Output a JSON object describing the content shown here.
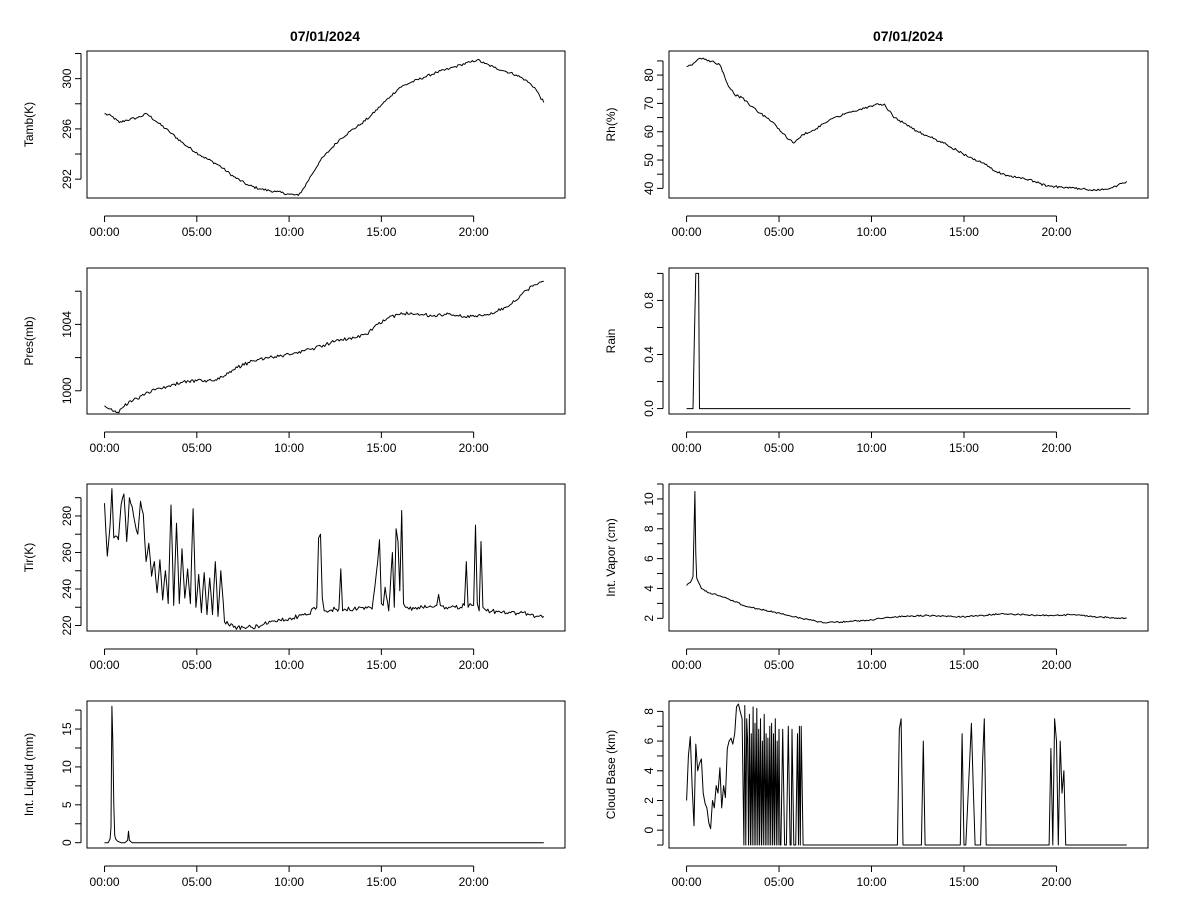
{
  "figure": {
    "titles": [
      "07/01/2024",
      "07/01/2024"
    ]
  },
  "chart_data": [
    {
      "type": "line",
      "panel": "left-row-1",
      "ylabel": "Tamb(K)",
      "x_ticks": [
        "00:00",
        "05:00",
        "10:00",
        "15:00",
        "20:00"
      ],
      "y_ticks": [
        "292",
        "296",
        "300"
      ],
      "ylim": [
        290.5,
        302.2
      ],
      "xlim": [
        -0.95,
        24.95
      ],
      "noise": 0.1,
      "x": [
        0,
        0.4,
        0.8,
        1.2,
        1.8,
        2.3,
        2.8,
        3.5,
        4.3,
        5.2,
        6.2,
        7.0,
        7.8,
        8.5,
        9.3,
        10.0,
        10.5,
        10.8,
        11.2,
        11.7,
        12.2,
        12.7,
        13.3,
        13.9,
        14.4,
        15.0,
        15.5,
        16.0,
        16.6,
        17.3,
        18.0,
        18.7,
        19.3,
        19.8,
        20.2,
        20.6,
        21.1,
        21.7,
        22.3,
        22.8,
        23.3,
        23.8
      ],
      "y": [
        297.2,
        297.0,
        296.5,
        296.7,
        296.9,
        297.2,
        296.6,
        295.8,
        294.8,
        293.9,
        293.1,
        292.2,
        291.5,
        291.2,
        291.0,
        290.8,
        290.7,
        291.3,
        292.3,
        293.5,
        294.3,
        295.1,
        295.8,
        296.4,
        297.0,
        297.9,
        298.6,
        299.3,
        299.7,
        300.1,
        300.5,
        300.8,
        301.1,
        301.3,
        301.5,
        301.2,
        300.9,
        300.6,
        300.3,
        299.9,
        299.3,
        298.1
      ]
    },
    {
      "type": "line",
      "panel": "right-row-1",
      "ylabel": "Rh(%)",
      "x_ticks": [
        "00:00",
        "05:00",
        "10:00",
        "15:00",
        "20:00"
      ],
      "y_ticks": [
        "40",
        "50",
        "60",
        "70",
        "80"
      ],
      "ylim": [
        36.6,
        88.5
      ],
      "xlim": [
        -0.95,
        24.95
      ],
      "noise": 0.4,
      "x": [
        0,
        0.3,
        0.6,
        0.9,
        1.2,
        1.5,
        1.8,
        2.2,
        2.6,
        3.0,
        3.5,
        4.0,
        4.5,
        5.0,
        5.4,
        5.8,
        6.3,
        7.0,
        7.8,
        8.6,
        9.4,
        10.2,
        10.7,
        11.2,
        11.8,
        12.5,
        13.2,
        13.9,
        14.6,
        15.3,
        16.0,
        16.7,
        17.4,
        18.1,
        18.8,
        19.5,
        20.2,
        21.0,
        21.8,
        22.4,
        22.9,
        23.3,
        23.8
      ],
      "y": [
        83,
        83.5,
        85.5,
        86,
        85.2,
        84.5,
        83.6,
        77,
        73,
        72,
        69,
        66.5,
        64,
        61,
        58,
        56,
        59,
        61,
        64.5,
        66.5,
        68,
        69.5,
        69.8,
        65,
        63,
        60,
        58,
        56,
        53.5,
        51,
        49,
        46,
        44.5,
        43.5,
        42.5,
        40.8,
        40.5,
        40,
        39.5,
        39.5,
        40,
        41,
        42.5
      ]
    },
    {
      "type": "line",
      "panel": "left-row-2",
      "ylabel": "Pres(mb)",
      "x_ticks": [
        "00:00",
        "05:00",
        "10:00",
        "15:00",
        "20:00"
      ],
      "y_ticks": [
        "1000",
        "1004"
      ],
      "ylim": [
        998.6,
        1007.4
      ],
      "xlim": [
        -0.95,
        24.95
      ],
      "noise": 0.1,
      "x": [
        0,
        0.3,
        0.7,
        1.0,
        1.4,
        1.8,
        2.2,
        2.8,
        3.5,
        4.2,
        5.0,
        5.8,
        6.5,
        7.2,
        8.0,
        8.8,
        9.6,
        10.4,
        11.2,
        12.0,
        12.8,
        13.6,
        14.2,
        14.8,
        15.4,
        16.0,
        16.6,
        17.2,
        17.8,
        18.5,
        19.2,
        19.9,
        20.6,
        21.3,
        22.0,
        22.6,
        23.2,
        23.8
      ],
      "y": [
        999.1,
        998.9,
        998.7,
        999.0,
        999.4,
        999.5,
        999.8,
        1000.1,
        1000.3,
        1000.5,
        1000.6,
        1000.6,
        1000.9,
        1001.4,
        1001.8,
        1002.0,
        1002.1,
        1002.3,
        1002.5,
        1002.8,
        1003.1,
        1003.2,
        1003.4,
        1004.0,
        1004.4,
        1004.6,
        1004.7,
        1004.6,
        1004.5,
        1004.6,
        1004.5,
        1004.5,
        1004.6,
        1004.8,
        1005.2,
        1005.8,
        1006.3,
        1006.6
      ]
    },
    {
      "type": "line",
      "panel": "right-row-2",
      "ylabel": "Rain",
      "x_ticks": [
        "00:00",
        "05:00",
        "10:00",
        "15:00",
        "20:00"
      ],
      "y_ticks": [
        "0.0",
        "0.4",
        "0.8"
      ],
      "ylim": [
        -0.04,
        1.04
      ],
      "xlim": [
        -0.95,
        24.95
      ],
      "noise": 0,
      "x": [
        0,
        0.2,
        0.35,
        0.42,
        0.5,
        0.6,
        0.65,
        0.7,
        1.0,
        24
      ],
      "y": [
        0,
        0,
        0,
        0.5,
        1,
        1,
        1,
        0,
        0,
        0
      ]
    },
    {
      "type": "line",
      "panel": "left-row-3",
      "ylabel": "Tir(K)",
      "x_ticks": [
        "00:00",
        "05:00",
        "10:00",
        "15:00",
        "20:00"
      ],
      "y_ticks": [
        "220",
        "240",
        "260",
        "280"
      ],
      "ylim": [
        217,
        297.5
      ],
      "xlim": [
        -0.95,
        24.95
      ],
      "noise": 1.2,
      "x": [
        0,
        0.15,
        0.3,
        0.4,
        0.5,
        0.6,
        0.75,
        0.9,
        1.05,
        1.2,
        1.35,
        1.5,
        1.65,
        1.8,
        1.95,
        2.1,
        2.25,
        2.4,
        2.55,
        2.7,
        2.85,
        3.0,
        3.15,
        3.3,
        3.45,
        3.6,
        3.75,
        3.9,
        4.05,
        4.2,
        4.35,
        4.5,
        4.65,
        4.8,
        4.95,
        5.1,
        5.25,
        5.4,
        5.55,
        5.7,
        5.85,
        6.0,
        6.15,
        6.3,
        6.5,
        7.0,
        7.5,
        8.0,
        8.5,
        9.0,
        9.5,
        10.0,
        10.5,
        11.0,
        11.5,
        11.6,
        11.7,
        11.8,
        11.9,
        12.0,
        12.5,
        12.7,
        12.8,
        12.9,
        13.0,
        13.5,
        14.0,
        14.5,
        14.8,
        14.9,
        15.0,
        15.1,
        15.2,
        15.4,
        15.6,
        15.7,
        15.8,
        15.9,
        16.0,
        16.1,
        16.2,
        16.3,
        16.4,
        16.5,
        17.0,
        17.5,
        18.0,
        18.1,
        18.2,
        18.5,
        19.0,
        19.5,
        19.6,
        19.7,
        19.8,
        19.9,
        20.0,
        20.1,
        20.2,
        20.3,
        20.4,
        20.5,
        20.6,
        20.7,
        21.0,
        21.5,
        22.0,
        22.5,
        23.0,
        23.5,
        23.8
      ],
      "y": [
        287,
        258,
        275,
        295,
        268,
        269,
        267,
        286,
        292,
        266,
        290,
        285,
        276,
        270,
        288,
        281,
        255,
        265,
        247,
        255,
        238,
        256,
        234,
        250,
        232,
        286,
        231,
        276,
        232,
        262,
        235,
        251,
        232,
        284,
        230,
        248,
        227,
        249,
        226,
        246,
        226,
        255,
        225,
        250,
        222,
        219,
        219,
        219,
        220,
        222,
        223,
        224,
        225,
        226,
        230,
        268,
        270,
        235,
        228,
        228,
        229,
        229,
        251,
        228,
        229,
        229,
        230,
        229,
        255,
        267,
        232,
        231,
        241,
        228,
        260,
        230,
        273,
        266,
        239,
        283,
        232,
        230,
        230,
        229,
        230,
        230,
        231,
        237,
        231,
        230,
        230,
        231,
        255,
        230,
        232,
        231,
        231,
        275,
        232,
        228,
        266,
        230,
        229,
        228,
        228,
        227,
        227,
        227,
        226,
        225,
        225
      ]
    },
    {
      "type": "line",
      "panel": "right-row-3",
      "ylabel": "Int. Vapor (cm)",
      "x_ticks": [
        "00:00",
        "05:00",
        "10:00",
        "15:00",
        "20:00"
      ],
      "y_ticks": [
        "2",
        "4",
        "6",
        "8",
        "10"
      ],
      "ylim": [
        1.15,
        11.0
      ],
      "xlim": [
        -0.95,
        24.95
      ],
      "noise": 0.05,
      "x": [
        0,
        0.2,
        0.35,
        0.45,
        0.5,
        0.55,
        0.65,
        0.8,
        1.2,
        1.8,
        2.5,
        3.2,
        4.0,
        4.8,
        5.5,
        6.2,
        7.0,
        7.6,
        8.2,
        9.0,
        10.0,
        11.0,
        12.0,
        13.0,
        14.0,
        15.0,
        16.0,
        17.0,
        18.0,
        19.0,
        20.0,
        21.0,
        22.0,
        23.0,
        23.8
      ],
      "y": [
        4.2,
        4.4,
        4.8,
        10.5,
        6.3,
        4.7,
        4.4,
        4.0,
        3.7,
        3.5,
        3.2,
        2.8,
        2.6,
        2.4,
        2.2,
        2.0,
        1.8,
        1.7,
        1.75,
        1.8,
        1.9,
        2.05,
        2.15,
        2.2,
        2.15,
        2.1,
        2.2,
        2.3,
        2.25,
        2.2,
        2.2,
        2.25,
        2.1,
        2.05,
        2.0
      ]
    },
    {
      "type": "line",
      "panel": "left-row-4",
      "ylabel": "Int. Liquid (mm)",
      "x_ticks": [
        "00:00",
        "05:00",
        "10:00",
        "15:00",
        "20:00"
      ],
      "y_ticks": [
        "0",
        "5",
        "10",
        "15"
      ],
      "ylim": [
        -0.7,
        18.7
      ],
      "xlim": [
        -0.95,
        24.95
      ],
      "noise": 0,
      "x": [
        0,
        0.2,
        0.3,
        0.35,
        0.4,
        0.45,
        0.5,
        0.55,
        0.6,
        0.7,
        0.9,
        1.1,
        1.25,
        1.3,
        1.35,
        1.5,
        2.0,
        23.8
      ],
      "y": [
        0,
        0,
        0.5,
        2,
        18,
        13.5,
        5,
        1,
        0.5,
        0.2,
        0,
        0,
        0.3,
        1.5,
        0.3,
        0,
        0,
        0
      ]
    },
    {
      "type": "line",
      "panel": "right-row-4",
      "ylabel": "Cloud Base (km)",
      "x_ticks": [
        "00:00",
        "05:00",
        "10:00",
        "15:00",
        "20:00"
      ],
      "y_ticks": [
        "0",
        "2",
        "4",
        "6",
        "8"
      ],
      "ylim": [
        -1.2,
        8.7
      ],
      "xlim": [
        -0.95,
        24.95
      ],
      "noise": 0,
      "x": [
        0,
        0.1,
        0.2,
        0.3,
        0.4,
        0.5,
        0.6,
        0.7,
        0.8,
        0.9,
        1.0,
        1.1,
        1.2,
        1.3,
        1.4,
        1.5,
        1.6,
        1.7,
        1.8,
        1.9,
        2.0,
        2.1,
        2.2,
        2.3,
        2.4,
        2.5,
        2.6,
        2.7,
        2.8,
        2.9,
        3.0,
        3.1,
        3.15,
        3.2,
        3.25,
        3.3,
        3.35,
        3.4,
        3.45,
        3.5,
        3.55,
        3.6,
        3.65,
        3.7,
        3.75,
        3.8,
        3.85,
        3.9,
        3.95,
        4.0,
        4.05,
        4.1,
        4.15,
        4.2,
        4.25,
        4.3,
        4.35,
        4.4,
        4.45,
        4.5,
        4.55,
        4.6,
        4.65,
        4.7,
        4.75,
        4.8,
        4.85,
        4.9,
        4.95,
        5.0,
        5.05,
        5.1,
        5.2,
        5.3,
        5.4,
        5.5,
        5.6,
        5.65,
        5.7,
        5.8,
        5.9,
        6.0,
        6.05,
        6.1,
        6.15,
        6.2,
        6.3,
        6.4,
        11.4,
        11.5,
        11.6,
        11.7,
        11.8,
        12.7,
        12.8,
        12.9,
        14.8,
        14.9,
        15.0,
        15.1,
        15.4,
        15.5,
        15.6,
        15.7,
        15.8,
        15.9,
        16.0,
        16.1,
        16.2,
        16.3,
        19.6,
        19.7,
        19.8,
        19.9,
        20.0,
        20.1,
        20.2,
        20.3,
        20.4,
        20.5,
        20.6,
        23.8
      ],
      "y": [
        2,
        5,
        6.3,
        3,
        0.3,
        5.8,
        4,
        4.5,
        4.8,
        2.5,
        1.8,
        1.5,
        0.5,
        0.1,
        2,
        1.5,
        3,
        2.5,
        4.2,
        1.5,
        3,
        2.2,
        5.5,
        6,
        6.2,
        5.8,
        6.5,
        8.3,
        8.5,
        8,
        7.5,
        -1,
        8.4,
        -1,
        7.5,
        6,
        -1,
        7.8,
        -1,
        6.5,
        -1,
        8.3,
        -1,
        7.2,
        -1,
        8.2,
        -1,
        6.8,
        -1,
        7.5,
        -1,
        6,
        -1,
        7.8,
        -1,
        6.5,
        -1,
        6.2,
        -1,
        7,
        -1,
        7.2,
        -1,
        6.5,
        -1,
        7.5,
        -1,
        6,
        -1,
        6.8,
        -1,
        -1,
        6.8,
        -1,
        -1,
        7,
        -1,
        -1,
        6.8,
        -1,
        -1,
        6.5,
        -1,
        7,
        -1,
        7,
        -1,
        -1,
        -1,
        6.8,
        7.5,
        -1,
        -1,
        -1,
        6,
        -1,
        -1,
        6.5,
        -1,
        -1,
        7.2,
        3,
        -1,
        -1,
        -1,
        -1,
        4.5,
        7.5,
        -1,
        -1,
        -1,
        5.5,
        -1,
        7.5,
        6,
        -1,
        6,
        2.5,
        4,
        -1,
        -1,
        -1
      ]
    }
  ]
}
